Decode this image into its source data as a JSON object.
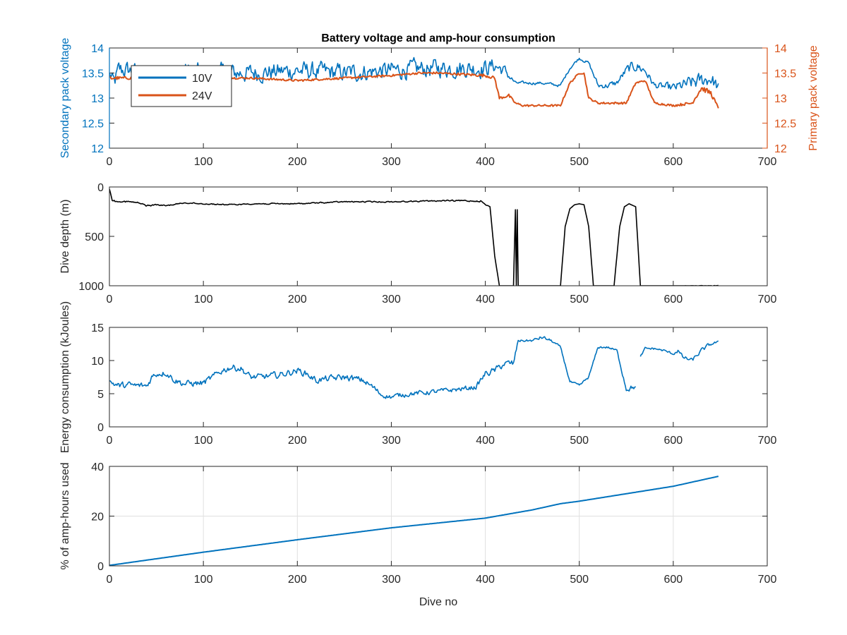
{
  "chart_data": [
    {
      "type": "line",
      "title": "Battery voltage and amp-hour consumption",
      "xlabel": "",
      "ylabel": "Secondary pack voltage",
      "ylabel_right": "Primary pack voltage",
      "xlim": [
        0,
        700
      ],
      "ylim": [
        12,
        14
      ],
      "ylim_right": [
        12,
        14
      ],
      "xticks": [
        "0",
        "100",
        "200",
        "300",
        "400",
        "500",
        "600",
        "700"
      ],
      "yticks": [
        "12",
        "12.5",
        "13",
        "13.5",
        "14"
      ],
      "yticks_right": [
        "12",
        "12.5",
        "13",
        "13.5",
        "14"
      ],
      "grid": false,
      "legend": "top-left",
      "series": [
        {
          "name": "10V",
          "color": "#0072BD",
          "axis": "left",
          "style": "noisy",
          "x": [
            0,
            5,
            10,
            20,
            40,
            60,
            80,
            100,
            120,
            150,
            200,
            250,
            300,
            350,
            400,
            410,
            420,
            432,
            440,
            460,
            480,
            490,
            500,
            510,
            520,
            530,
            540,
            550,
            560,
            570,
            580,
            600,
            620,
            640,
            648
          ],
          "y": [
            13.5,
            13.3,
            13.55,
            13.55,
            13.5,
            13.5,
            13.55,
            13.5,
            13.5,
            13.5,
            13.55,
            13.5,
            13.55,
            13.6,
            13.6,
            13.65,
            13.55,
            13.3,
            13.3,
            13.3,
            13.25,
            13.6,
            13.8,
            13.7,
            13.25,
            13.25,
            13.3,
            13.55,
            13.65,
            13.55,
            13.25,
            13.2,
            13.3,
            13.4,
            13.2
          ],
          "spread": [
            0.05,
            0.35,
            0.3,
            0.3,
            0.3,
            0.3,
            0.3,
            0.3,
            0.3,
            0.3,
            0.3,
            0.3,
            0.3,
            0.3,
            0.3,
            0.25,
            0.2,
            0.05,
            0.05,
            0.05,
            0.05,
            0.05,
            0.05,
            0.05,
            0.1,
            0.1,
            0.1,
            0.15,
            0.2,
            0.15,
            0.1,
            0.15,
            0.25,
            0.25,
            0.2
          ]
        },
        {
          "name": "24V",
          "color": "#D95319",
          "axis": "right",
          "style": "smooth",
          "x": [
            0,
            10,
            20,
            50,
            100,
            150,
            200,
            250,
            300,
            330,
            350,
            400,
            410,
            415,
            425,
            432,
            440,
            460,
            470,
            480,
            490,
            500,
            505,
            510,
            520,
            540,
            550,
            560,
            570,
            580,
            600,
            620,
            630,
            640,
            648
          ],
          "y": [
            13.4,
            13.4,
            13.4,
            13.4,
            13.4,
            13.4,
            13.35,
            13.4,
            13.45,
            13.5,
            13.5,
            13.45,
            13.4,
            13.0,
            13.05,
            12.9,
            12.85,
            12.85,
            12.85,
            12.85,
            13.3,
            13.5,
            13.5,
            13.0,
            12.9,
            12.9,
            12.9,
            13.3,
            13.35,
            12.9,
            12.85,
            12.9,
            13.2,
            13.1,
            12.8
          ],
          "spread": [
            0.05,
            0.03,
            0.03,
            0.02,
            0.02,
            0.02,
            0.02,
            0.02,
            0.02,
            0.02,
            0.02,
            0.03,
            0.03,
            0.03,
            0.03,
            0.02,
            0.02,
            0.02,
            0.02,
            0.02,
            0.02,
            0.02,
            0.02,
            0.02,
            0.02,
            0.02,
            0.02,
            0.02,
            0.02,
            0.02,
            0.02,
            0.03,
            0.05,
            0.05,
            0.02
          ]
        }
      ]
    },
    {
      "type": "line",
      "title": "",
      "xlabel": "",
      "ylabel": "Dive depth (m)",
      "xlim": [
        0,
        700
      ],
      "ylim": [
        0,
        1000
      ],
      "y_reversed": true,
      "xticks": [
        "0",
        "100",
        "200",
        "300",
        "400",
        "500",
        "600",
        "700"
      ],
      "yticks": [
        "0",
        "500",
        "1000"
      ],
      "grid": false,
      "series": [
        {
          "color": "#000000",
          "style": "noisy",
          "x": [
            0,
            3,
            8,
            10,
            20,
            30,
            40,
            50,
            60,
            80,
            100,
            130,
            150,
            200,
            250,
            300,
            350,
            395,
            400,
            405,
            410,
            415,
            420,
            430,
            432,
            433,
            434,
            435,
            440,
            470,
            480,
            485,
            490,
            495,
            500,
            505,
            510,
            515,
            530,
            537,
            543,
            548,
            553,
            560,
            565,
            600,
            648
          ],
          "y": [
            20,
            130,
            150,
            140,
            150,
            160,
            190,
            180,
            190,
            160,
            170,
            180,
            170,
            170,
            150,
            150,
            140,
            140,
            180,
            200,
            700,
            1000,
            1000,
            1000,
            230,
            1000,
            230,
            1000,
            1000,
            1000,
            1000,
            400,
            220,
            180,
            170,
            180,
            400,
            1000,
            1000,
            1000,
            400,
            200,
            170,
            200,
            1000,
            1000,
            1000
          ],
          "spread": [
            0,
            15,
            15,
            15,
            15,
            15,
            15,
            10,
            10,
            10,
            10,
            10,
            10,
            10,
            10,
            10,
            10,
            15,
            15,
            0,
            0,
            0,
            0,
            0,
            0,
            0,
            0,
            0,
            0,
            0,
            0,
            0,
            0,
            0,
            0,
            0,
            0,
            0,
            0,
            0,
            0,
            0,
            0,
            0,
            0,
            0,
            5
          ]
        }
      ]
    },
    {
      "type": "line",
      "title": "",
      "xlabel": "",
      "ylabel": "Energy consumption (kJoules)",
      "xlim": [
        0,
        700
      ],
      "ylim": [
        0,
        15
      ],
      "xticks": [
        "0",
        "100",
        "200",
        "300",
        "400",
        "500",
        "600",
        "700"
      ],
      "yticks": [
        "0",
        "5",
        "10",
        "15"
      ],
      "grid": false,
      "series": [
        {
          "color": "#0072BD",
          "style": "noisy",
          "x": [
            0,
            5,
            10,
            20,
            30,
            40,
            45,
            50,
            60,
            70,
            80,
            100,
            110,
            120,
            130,
            140,
            150,
            160,
            180,
            200,
            210,
            220,
            230,
            250,
            270,
            280,
            290,
            300,
            310,
            320,
            340,
            360,
            380,
            390,
            400,
            410,
            420,
            430,
            435,
            440,
            450,
            460,
            470,
            480,
            490,
            500,
            510,
            520,
            525,
            530,
            540,
            550,
            560
          ],
          "y": [
            6.8,
            6.5,
            6.2,
            6.3,
            6.2,
            6.2,
            7.5,
            8.0,
            8.2,
            7.0,
            6.5,
            6.6,
            7.5,
            8.5,
            9.0,
            8.8,
            7.5,
            7.5,
            7.8,
            8.5,
            8.0,
            7.0,
            7.2,
            7.5,
            7.0,
            6.0,
            4.8,
            4.5,
            4.8,
            5.0,
            5.2,
            5.5,
            5.8,
            6.0,
            8.0,
            8.5,
            9.5,
            9.5,
            13.0,
            13.0,
            13.0,
            13.5,
            13.0,
            12.0,
            6.8,
            6.2,
            7.5,
            12.0,
            12.0,
            12.0,
            11.5,
            5.8,
            6.0
          ],
          "spread": [
            0.8,
            0.8,
            0.8,
            0.8,
            0.8,
            0.8,
            0.8,
            0.8,
            0.8,
            0.8,
            0.8,
            0.8,
            0.8,
            0.8,
            0.8,
            0.8,
            0.8,
            0.8,
            0.8,
            0.8,
            0.8,
            0.8,
            0.8,
            0.8,
            0.8,
            0.8,
            0.6,
            0.6,
            0.6,
            0.6,
            0.6,
            0.6,
            0.6,
            0.6,
            0.8,
            0.8,
            0.8,
            1.0,
            0.3,
            0.3,
            0.3,
            0.5,
            0.3,
            0.3,
            0.3,
            0.3,
            0.3,
            0.3,
            0.3,
            0.3,
            0.3,
            0.8,
            0.5
          ]
        },
        {
          "color": "#0072BD",
          "style": "noisy",
          "x": [
            565,
            570,
            580,
            590,
            600,
            605,
            610,
            620,
            630,
            640,
            648
          ],
          "y": [
            10.5,
            11.8,
            11.8,
            11.5,
            11.0,
            11.5,
            10.5,
            10.0,
            11.5,
            12.5,
            12.8
          ],
          "spread": [
            0.3,
            0.3,
            0.3,
            0.3,
            0.3,
            0.5,
            0.5,
            0.5,
            0.5,
            0.5,
            0.2
          ]
        }
      ]
    },
    {
      "type": "line",
      "title": "",
      "xlabel": "Dive no",
      "ylabel": "% of amp-hours used",
      "xlim": [
        0,
        700
      ],
      "ylim": [
        0,
        40
      ],
      "xticks": [
        "0",
        "100",
        "200",
        "300",
        "400",
        "500",
        "600",
        "700"
      ],
      "yticks": [
        "0",
        "20",
        "40"
      ],
      "grid": true,
      "series": [
        {
          "color": "#0072BD",
          "style": "smooth",
          "x": [
            0,
            100,
            200,
            300,
            400,
            450,
            480,
            500,
            550,
            600,
            648
          ],
          "y": [
            0.2,
            5.5,
            10.5,
            15.3,
            19.2,
            22.5,
            25.0,
            26.0,
            29.0,
            32.0,
            36.0
          ]
        }
      ]
    }
  ]
}
